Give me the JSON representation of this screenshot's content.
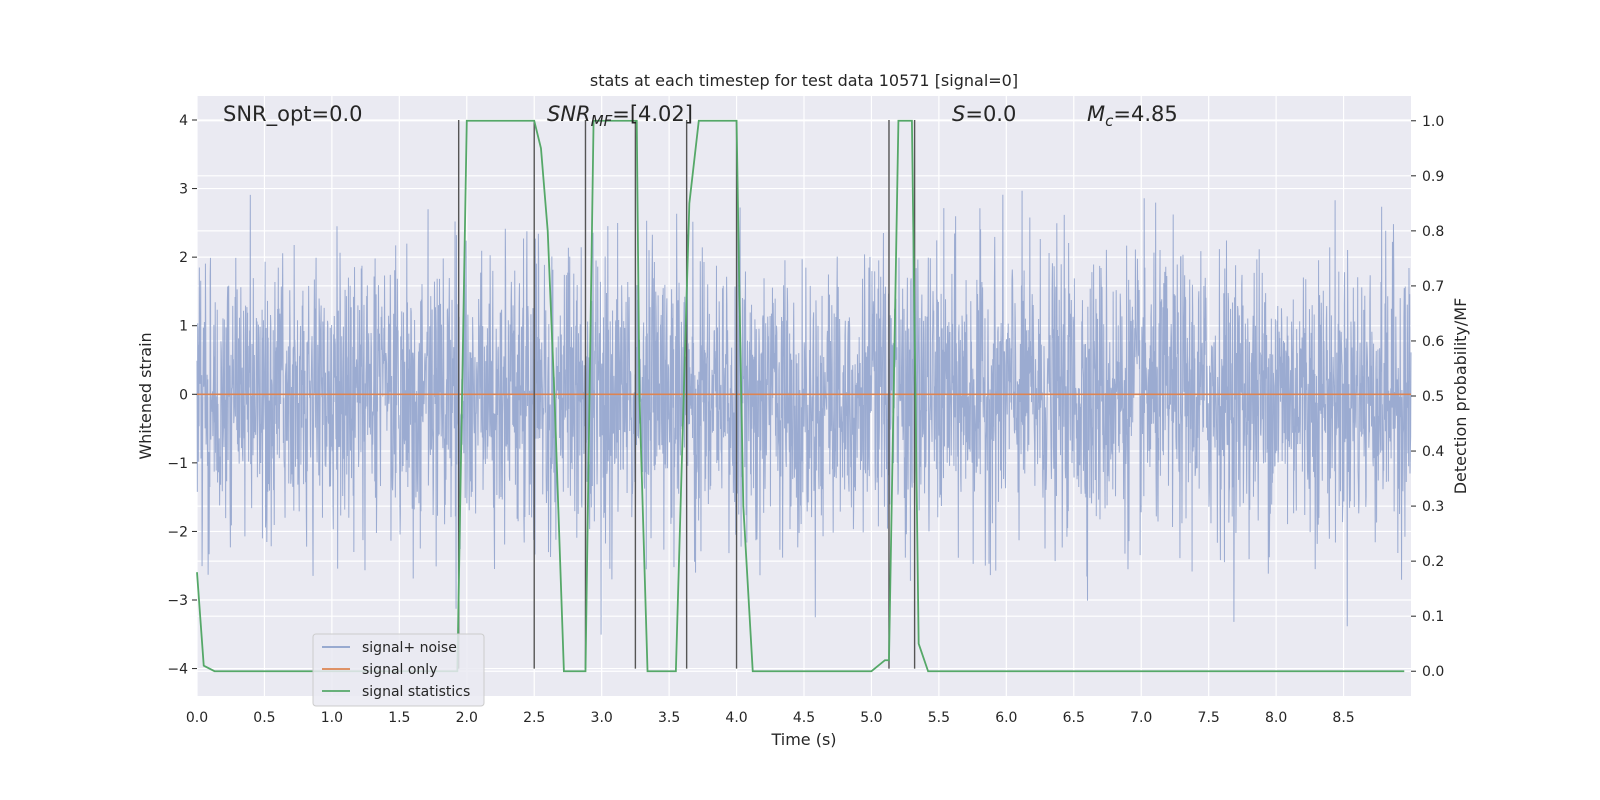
{
  "chart_data": {
    "type": "line",
    "title": "stats at each timestep for test data 10571 [signal=0]",
    "xlabel": "Time (s)",
    "ylabel": "Whitened strain",
    "y2label": "Detection probability/MF",
    "xlim": [
      0.0,
      9.0
    ],
    "ylim": [
      -4.4,
      4.35
    ],
    "y2lim": [
      -0.045,
      1.045
    ],
    "grid": true,
    "legend_position": "lower-left",
    "x_ticks": [
      "0.0",
      "0.5",
      "1.0",
      "1.5",
      "2.0",
      "2.5",
      "3.0",
      "3.5",
      "4.0",
      "4.5",
      "5.0",
      "5.5",
      "6.0",
      "6.5",
      "7.0",
      "7.5",
      "8.0",
      "8.5"
    ],
    "y_ticks": [
      "4",
      "3",
      "2",
      "1",
      "0",
      "−1",
      "−2",
      "−3",
      "−4"
    ],
    "y2_ticks": [
      "1.0",
      "0.9",
      "0.8",
      "0.7",
      "0.6",
      "0.5",
      "0.4",
      "0.3",
      "0.2",
      "0.1",
      "0.0"
    ],
    "annotations": {
      "snr_opt": "SNR_opt=0.0",
      "snr_mf_label": "SNR",
      "snr_mf_sub": "MF",
      "snr_mf_value": "=[4.02]",
      "s_label": "S",
      "s_value": "=0.0",
      "mc_label": "M",
      "mc_sub": "c",
      "mc_value": "=4.85"
    },
    "series": [
      {
        "name": "signal+ noise",
        "color": "#8da0cb",
        "kind": "noise",
        "amplitude_sigma": 1.0,
        "x_range": [
          0.0,
          9.0
        ]
      },
      {
        "name": "signal only",
        "color": "#dd8452",
        "x": [
          0.0,
          9.0
        ],
        "y": [
          0.0,
          0.0
        ]
      },
      {
        "name": "signal statistics",
        "color": "#55a868",
        "axis": "right",
        "x": [
          0.0,
          0.05,
          0.13,
          0.5,
          1.0,
          1.5,
          1.85,
          1.93,
          2.0,
          2.5,
          2.55,
          2.6,
          2.65,
          2.72,
          2.88,
          2.94,
          3.0,
          3.26,
          3.28,
          3.34,
          3.4,
          3.55,
          3.62,
          3.65,
          3.72,
          4.0,
          4.02,
          4.05,
          4.12,
          4.2,
          5.0,
          5.1,
          5.13,
          5.2,
          5.3,
          5.35,
          5.42,
          6.0,
          7.0,
          8.0,
          8.95
        ],
        "y": [
          0.18,
          0.01,
          0.0,
          0.0,
          0.0,
          0.0,
          0.0,
          0.0,
          1.0,
          1.0,
          0.95,
          0.8,
          0.5,
          0.0,
          0.0,
          1.0,
          1.0,
          1.0,
          0.5,
          0.0,
          0.0,
          0.0,
          0.6,
          0.85,
          1.0,
          1.0,
          0.7,
          0.3,
          0.0,
          0.0,
          0.0,
          0.02,
          0.02,
          1.0,
          1.0,
          0.05,
          0.0,
          0.0,
          0.0,
          0.0,
          0.0
        ]
      }
    ],
    "detection_markers": {
      "color": "#555555",
      "x": [
        1.94,
        2.5,
        2.88,
        3.25,
        3.63,
        4.0,
        5.13,
        5.32
      ],
      "y_range": [
        -4.0,
        4.0
      ]
    }
  }
}
